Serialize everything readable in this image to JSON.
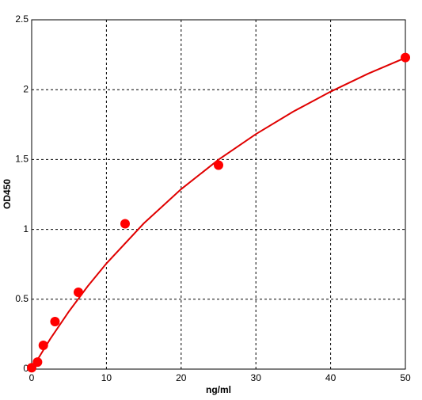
{
  "chart_data": {
    "type": "scatter",
    "xlabel": "ng/ml",
    "ylabel": "OD450",
    "xlim": [
      0,
      50
    ],
    "ylim": [
      0,
      2.5
    ],
    "xticks": [
      0,
      10,
      20,
      30,
      40,
      50
    ],
    "yticks": [
      0,
      0.5,
      1,
      1.5,
      2,
      2.5
    ],
    "grid": true,
    "points": {
      "color": "#ff0000",
      "x": [
        0,
        0.78,
        1.56,
        3.12,
        6.25,
        12.5,
        25,
        50
      ],
      "y": [
        0.01,
        0.05,
        0.17,
        0.34,
        0.55,
        1.04,
        1.46,
        2.23
      ]
    },
    "fit": {
      "color": "#e00000",
      "x": [
        0,
        2.5,
        5,
        7.5,
        10,
        15,
        20,
        25,
        30,
        35,
        40,
        45,
        50
      ],
      "y": [
        0,
        0.217,
        0.414,
        0.593,
        0.756,
        1.043,
        1.288,
        1.499,
        1.682,
        1.843,
        1.986,
        2.114,
        2.228
      ]
    }
  }
}
